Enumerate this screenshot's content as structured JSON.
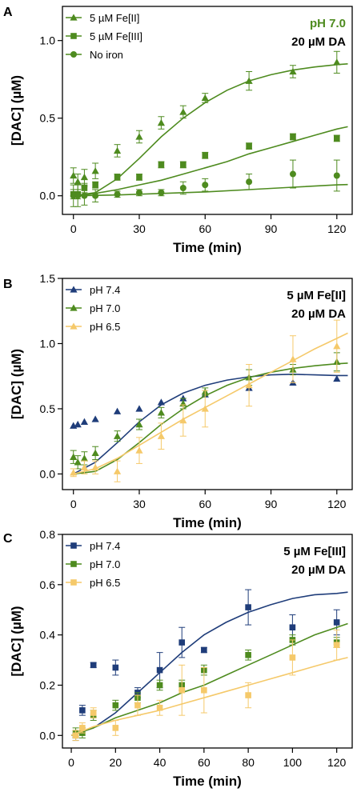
{
  "chart_data": [
    {
      "type": "scatter",
      "panel": "A",
      "xlabel": "Time (min)",
      "ylabel": "[DAC] (µM)",
      "xlim": [
        -5,
        127
      ],
      "ylim": [
        -0.12,
        1.22
      ],
      "xticks": [
        0,
        30,
        60,
        90,
        120
      ],
      "yticks": [
        0.0,
        0.5,
        1.0
      ],
      "ytick_labels": [
        "0.0",
        "0.5",
        "1.0"
      ],
      "legend_position": "top-left",
      "conditions": [
        {
          "text": "pH 7.0",
          "color": "#4e8b1f"
        },
        {
          "text": "20 µM DA",
          "color": "#000000"
        }
      ],
      "series": [
        {
          "name": "5 µM Fe[II]",
          "marker": "triangle",
          "color": "#4e8b1f",
          "x": [
            0,
            2,
            5,
            10,
            20,
            30,
            40,
            50,
            60,
            80,
            100,
            120
          ],
          "y": [
            0.13,
            0.09,
            0.12,
            0.16,
            0.29,
            0.38,
            0.47,
            0.54,
            0.63,
            0.74,
            0.8,
            0.86
          ],
          "err": [
            0.05,
            0.05,
            0.05,
            0.05,
            0.04,
            0.04,
            0.04,
            0.04,
            0.03,
            0.06,
            0.04,
            0.07
          ],
          "fit_x": [
            0,
            10,
            20,
            30,
            40,
            50,
            60,
            70,
            80,
            90,
            100,
            110,
            120,
            125
          ],
          "fit_y": [
            0.0,
            0.02,
            0.11,
            0.24,
            0.38,
            0.5,
            0.6,
            0.68,
            0.74,
            0.78,
            0.81,
            0.83,
            0.845,
            0.85
          ]
        },
        {
          "name": "5 µM Fe[III]",
          "marker": "square",
          "color": "#4e8b1f",
          "x": [
            0,
            2,
            5,
            10,
            20,
            30,
            40,
            50,
            60,
            80,
            100,
            120
          ],
          "y": [
            0.01,
            0.01,
            0.05,
            0.07,
            0.12,
            0.12,
            0.2,
            0.2,
            0.26,
            0.32,
            0.38,
            0.37
          ],
          "err": [
            0.03,
            0.03,
            0.03,
            0.02,
            0.02,
            0.02,
            0.02,
            0.02,
            0.02,
            0.02,
            0.02,
            0.02
          ],
          "fit_x": [
            0,
            10,
            20,
            30,
            40,
            50,
            60,
            70,
            80,
            90,
            100,
            110,
            120,
            125
          ],
          "fit_y": [
            0.0,
            0.015,
            0.04,
            0.07,
            0.1,
            0.14,
            0.18,
            0.22,
            0.27,
            0.31,
            0.35,
            0.39,
            0.43,
            0.445
          ],
          "err_visible": true
        },
        {
          "name": "No iron",
          "marker": "circle",
          "color": "#4e8b1f",
          "x": [
            0,
            2,
            5,
            10,
            20,
            30,
            40,
            50,
            60,
            80,
            100,
            120
          ],
          "y": [
            0.0,
            0.0,
            0.0,
            0.0,
            0.01,
            0.02,
            0.02,
            0.05,
            0.07,
            0.09,
            0.14,
            0.13
          ],
          "err": [
            0.07,
            0.07,
            0.06,
            0.04,
            0.02,
            0.02,
            0.02,
            0.04,
            0.04,
            0.05,
            0.09,
            0.1
          ],
          "fit_x": [
            0,
            20,
            40,
            60,
            80,
            100,
            120,
            125
          ],
          "fit_y": [
            0.0,
            0.005,
            0.015,
            0.025,
            0.04,
            0.055,
            0.07,
            0.072
          ]
        }
      ]
    },
    {
      "type": "scatter",
      "panel": "B",
      "xlabel": "Time (min)",
      "ylabel": "[DAC] (µM)",
      "xlim": [
        -5,
        127
      ],
      "ylim": [
        -0.12,
        1.5
      ],
      "xticks": [
        0,
        30,
        60,
        90,
        120
      ],
      "yticks": [
        0.0,
        0.5,
        1.0,
        1.5
      ],
      "ytick_labels": [
        "0.0",
        "0.5",
        "1.0",
        "1.5"
      ],
      "legend_position": "top-left",
      "conditions": [
        {
          "text": "5 µM Fe[II]",
          "color": "#000000"
        },
        {
          "text": "20 µM DA",
          "color": "#000000"
        }
      ],
      "series": [
        {
          "name": "pH 7.4",
          "marker": "triangle",
          "color": "#1f3d7a",
          "x": [
            0,
            2,
            5,
            10,
            20,
            30,
            40,
            50,
            60,
            80,
            100,
            120
          ],
          "y": [
            0.37,
            0.38,
            0.4,
            0.42,
            0.48,
            0.5,
            0.55,
            0.58,
            0.61,
            0.66,
            0.7,
            0.73
          ],
          "err": [
            0,
            0,
            0,
            0,
            0,
            0,
            0,
            0,
            0,
            0,
            0,
            0
          ],
          "fit_x": [
            0,
            10,
            20,
            30,
            40,
            50,
            60,
            70,
            80,
            90,
            100,
            110,
            120,
            125
          ],
          "fit_y": [
            0.0,
            0.09,
            0.24,
            0.4,
            0.53,
            0.62,
            0.68,
            0.72,
            0.745,
            0.76,
            0.765,
            0.76,
            0.755,
            0.755
          ]
        },
        {
          "name": "pH 7.0",
          "marker": "triangle",
          "color": "#4e8b1f",
          "x": [
            0,
            2,
            5,
            10,
            20,
            30,
            40,
            50,
            60,
            80,
            100,
            120
          ],
          "y": [
            0.13,
            0.09,
            0.12,
            0.16,
            0.29,
            0.38,
            0.47,
            0.54,
            0.63,
            0.74,
            0.8,
            0.86
          ],
          "err": [
            0.05,
            0.05,
            0.05,
            0.05,
            0.04,
            0.04,
            0.04,
            0.04,
            0.03,
            0.06,
            0.04,
            0.07
          ],
          "fit_x": [
            0,
            10,
            20,
            30,
            40,
            50,
            60,
            70,
            80,
            90,
            100,
            110,
            120,
            125
          ],
          "fit_y": [
            0.0,
            0.02,
            0.11,
            0.24,
            0.38,
            0.5,
            0.6,
            0.68,
            0.74,
            0.78,
            0.81,
            0.83,
            0.845,
            0.85
          ]
        },
        {
          "name": "pH 6.5",
          "marker": "triangle",
          "color": "#f5c96a",
          "x": [
            0,
            5,
            10,
            20,
            30,
            40,
            50,
            60,
            80,
            100,
            120
          ],
          "y": [
            0.01,
            0.05,
            0.05,
            0.02,
            0.18,
            0.29,
            0.41,
            0.5,
            0.68,
            0.88,
            0.98
          ],
          "err": [
            0.03,
            0.05,
            0.05,
            0.08,
            0.1,
            0.1,
            0.12,
            0.14,
            0.16,
            0.18,
            0.2
          ],
          "fit_x": [
            0,
            10,
            20,
            30,
            40,
            50,
            60,
            70,
            80,
            90,
            100,
            110,
            120,
            125
          ],
          "fit_y": [
            0.0,
            0.04,
            0.12,
            0.22,
            0.32,
            0.42,
            0.51,
            0.6,
            0.69,
            0.78,
            0.87,
            0.96,
            1.04,
            1.08
          ]
        }
      ]
    },
    {
      "type": "scatter",
      "panel": "C",
      "xlabel": "Time (min)",
      "ylabel": "[DAC] (µM)",
      "xlim": [
        -4,
        127
      ],
      "ylim": [
        -0.05,
        0.8
      ],
      "xticks": [
        0,
        20,
        40,
        60,
        80,
        100,
        120
      ],
      "yticks": [
        0.0,
        0.2,
        0.4,
        0.6,
        0.8
      ],
      "ytick_labels": [
        "0.0",
        "0.2",
        "0.4",
        "0.6",
        "0.8"
      ],
      "legend_position": "top-left",
      "conditions": [
        {
          "text": "5 µM Fe[III]",
          "color": "#000000"
        },
        {
          "text": "20 µM DA",
          "color": "#000000"
        }
      ],
      "series": [
        {
          "name": "pH 7.4",
          "marker": "square",
          "color": "#1f3d7a",
          "x": [
            2,
            5,
            10,
            20,
            30,
            40,
            50,
            60,
            80,
            100,
            120
          ],
          "y": [
            0.0,
            0.1,
            0.28,
            0.27,
            0.17,
            0.26,
            0.37,
            0.34,
            0.51,
            0.43,
            0.45
          ],
          "err": [
            0.02,
            0.02,
            0.01,
            0.03,
            0.02,
            0.07,
            0.06,
            0.01,
            0.07,
            0.05,
            0.05
          ],
          "fit_x": [
            0,
            10,
            20,
            30,
            40,
            50,
            60,
            70,
            80,
            90,
            100,
            110,
            120,
            125
          ],
          "fit_y": [
            0.0,
            0.03,
            0.09,
            0.17,
            0.25,
            0.33,
            0.4,
            0.45,
            0.49,
            0.52,
            0.545,
            0.56,
            0.565,
            0.57
          ]
        },
        {
          "name": "pH 7.0",
          "marker": "square",
          "color": "#4e8b1f",
          "x": [
            2,
            5,
            10,
            20,
            30,
            40,
            50,
            60,
            80,
            100,
            120
          ],
          "y": [
            0.01,
            0.01,
            0.08,
            0.12,
            0.15,
            0.2,
            0.2,
            0.26,
            0.32,
            0.38,
            0.37
          ],
          "err": [
            0.02,
            0.02,
            0.02,
            0.02,
            0.02,
            0.02,
            0.02,
            0.02,
            0.02,
            0.02,
            0.02
          ],
          "fit_x": [
            0,
            10,
            20,
            30,
            40,
            50,
            60,
            70,
            80,
            90,
            100,
            110,
            120,
            125
          ],
          "fit_y": [
            0.0,
            0.03,
            0.07,
            0.1,
            0.13,
            0.17,
            0.2,
            0.24,
            0.28,
            0.32,
            0.36,
            0.4,
            0.43,
            0.445
          ]
        },
        {
          "name": "pH 6.5",
          "marker": "square",
          "color": "#f5c96a",
          "x": [
            2,
            5,
            10,
            20,
            30,
            40,
            50,
            60,
            80,
            100,
            120
          ],
          "y": [
            0.0,
            0.03,
            0.09,
            0.03,
            0.12,
            0.11,
            0.18,
            0.18,
            0.16,
            0.31,
            0.36
          ],
          "err": [
            0.02,
            0.02,
            0.02,
            0.03,
            0.04,
            0.03,
            0.1,
            0.09,
            0.05,
            0.07,
            0.06
          ],
          "fit_x": [
            0,
            10,
            20,
            30,
            40,
            50,
            60,
            70,
            80,
            90,
            100,
            110,
            120,
            125
          ],
          "fit_y": [
            0.0,
            0.035,
            0.06,
            0.08,
            0.1,
            0.125,
            0.15,
            0.175,
            0.2,
            0.225,
            0.25,
            0.275,
            0.3,
            0.31
          ]
        }
      ]
    }
  ]
}
